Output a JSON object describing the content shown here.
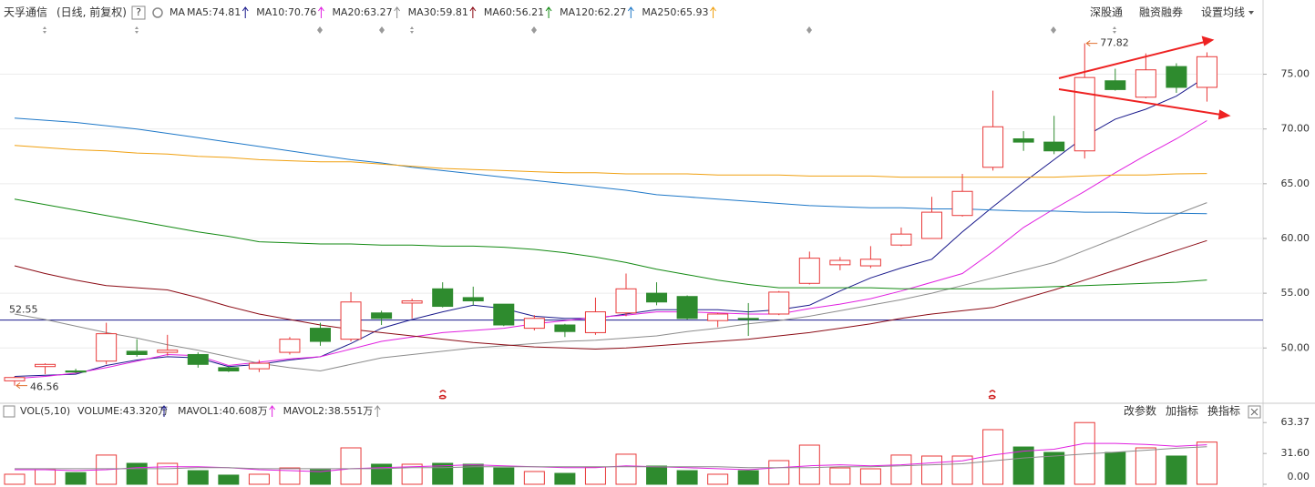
{
  "header": {
    "stock": "天孚通信",
    "period": "(日线, 前复权)",
    "help_icon": "?",
    "ma_label": "MA",
    "right_buttons": [
      "深股通",
      "融资融券",
      "设置均线"
    ]
  },
  "chart_data": [
    {
      "type": "candlestick",
      "open": [
        47.0,
        48.3,
        47.9,
        48.8,
        49.7,
        49.6,
        49.4,
        48.2,
        48.1,
        49.6,
        51.8,
        50.8,
        53.2,
        54.1,
        55.4,
        54.6,
        54.0,
        51.8,
        52.1,
        51.4,
        53.2,
        55.0,
        54.7,
        52.5,
        52.7,
        53.1,
        55.9,
        57.6,
        57.5,
        59.4,
        60.0,
        62.1,
        66.5,
        69.1,
        68.8,
        68.0,
        74.4,
        72.9,
        75.7,
        73.8
      ],
      "high": [
        47.4,
        48.6,
        48.1,
        52.3,
        50.8,
        51.2,
        49.6,
        48.3,
        48.9,
        51.0,
        52.3,
        55.1,
        53.4,
        54.5,
        56.0,
        55.6,
        54.0,
        53.0,
        52.2,
        54.6,
        56.8,
        56.0,
        54.8,
        53.2,
        54.1,
        55.2,
        58.8,
        58.3,
        59.3,
        61.0,
        63.8,
        65.9,
        73.5,
        69.8,
        71.2,
        77.82,
        75.5,
        76.9,
        76.0,
        77.0
      ],
      "low": [
        46.56,
        47.6,
        47.7,
        48.5,
        49.2,
        49.3,
        48.2,
        47.8,
        47.8,
        49.4,
        50.2,
        50.6,
        52.1,
        52.7,
        53.7,
        53.9,
        52.0,
        51.6,
        51.0,
        51.2,
        52.9,
        53.9,
        52.6,
        51.9,
        51.1,
        53.0,
        55.8,
        57.1,
        57.3,
        59.3,
        60.0,
        62.0,
        66.2,
        68.0,
        67.7,
        67.3,
        73.5,
        72.8,
        73.3,
        72.5
      ],
      "close": [
        47.3,
        48.5,
        47.8,
        51.3,
        49.4,
        49.8,
        48.5,
        47.9,
        48.6,
        50.8,
        50.6,
        54.2,
        52.7,
        54.3,
        53.8,
        54.3,
        52.1,
        52.7,
        51.5,
        53.3,
        55.4,
        54.2,
        52.7,
        53.1,
        52.6,
        55.1,
        58.2,
        58.0,
        58.1,
        60.4,
        62.4,
        64.3,
        70.2,
        68.8,
        68.0,
        74.7,
        73.6,
        75.4,
        73.8,
        76.6
      ],
      "up_color": "#e83838",
      "down_color": "#2e8b2e",
      "ylim": [
        45.2,
        79.7
      ],
      "yticks": [
        {
          "value": 50,
          "label": "50.00"
        },
        {
          "value": 55,
          "label": "55.00"
        },
        {
          "value": 60,
          "label": "60.00"
        },
        {
          "value": 65,
          "label": "65.00"
        },
        {
          "value": 70,
          "label": "70.00"
        },
        {
          "value": 75,
          "label": "75.00"
        }
      ],
      "grid": true,
      "ref_line": {
        "value": 52.55,
        "color": "#1a1a8c"
      },
      "series": [
        {
          "name": "MA5:74.81",
          "color": "#1a1a8c",
          "values": [
            47.4,
            47.5,
            47.6,
            48.4,
            48.9,
            49.2,
            49.1,
            48.3,
            48.5,
            48.9,
            49.2,
            50.4,
            51.8,
            52.6,
            53.3,
            53.9,
            53.6,
            52.9,
            52.7,
            52.7,
            53.1,
            53.5,
            53.5,
            53.5,
            53.3,
            53.5,
            53.9,
            55.2,
            56.4,
            57.3,
            58.1,
            60.6,
            62.9,
            65.1,
            67.2,
            69.3,
            70.9,
            71.8,
            73.0,
            74.81
          ]
        },
        {
          "name": "MA10:70.76",
          "color": "#e020e0",
          "values": [
            47.2,
            47.4,
            47.7,
            48.2,
            48.8,
            49.4,
            49.3,
            48.4,
            48.7,
            49.0,
            49.2,
            49.9,
            50.6,
            51.0,
            51.4,
            51.6,
            51.8,
            52.2,
            52.5,
            52.8,
            53.0,
            53.3,
            53.3,
            53.2,
            53.1,
            53.1,
            53.6,
            54.0,
            54.5,
            55.2,
            56.0,
            56.8,
            58.8,
            61.0,
            62.7,
            64.3,
            66.0,
            67.6,
            69.1,
            70.76
          ]
        },
        {
          "name": "MA20:63.27",
          "color": "#8c8c8c",
          "values": [
            53.1,
            52.6,
            52.0,
            51.4,
            50.9,
            50.3,
            49.8,
            49.2,
            48.6,
            48.2,
            47.9,
            48.5,
            49.1,
            49.4,
            49.7,
            50.0,
            50.2,
            50.4,
            50.6,
            50.7,
            50.9,
            51.1,
            51.5,
            51.8,
            52.2,
            52.5,
            52.9,
            53.4,
            53.9,
            54.4,
            55.0,
            55.7,
            56.4,
            57.1,
            57.8,
            58.9,
            60.0,
            61.1,
            62.2,
            63.27
          ]
        },
        {
          "name": "MA30:59.81",
          "color": "#8b0a14",
          "values": [
            57.5,
            56.8,
            56.2,
            55.7,
            55.5,
            55.3,
            54.6,
            53.8,
            53.1,
            52.6,
            52.1,
            51.7,
            51.4,
            51.1,
            50.8,
            50.5,
            50.3,
            50.1,
            50.0,
            49.9,
            50.0,
            50.2,
            50.4,
            50.6,
            50.8,
            51.1,
            51.4,
            51.8,
            52.2,
            52.7,
            53.1,
            53.4,
            53.7,
            54.5,
            55.3,
            56.2,
            57.1,
            58.0,
            58.9,
            59.81
          ]
        },
        {
          "name": "MA60:56.21",
          "color": "#138a13",
          "values": [
            63.6,
            63.1,
            62.6,
            62.1,
            61.6,
            61.1,
            60.6,
            60.2,
            59.7,
            59.6,
            59.5,
            59.5,
            59.4,
            59.4,
            59.3,
            59.3,
            59.2,
            59.0,
            58.7,
            58.3,
            57.8,
            57.2,
            56.7,
            56.2,
            55.8,
            55.5,
            55.5,
            55.5,
            55.5,
            55.4,
            55.4,
            55.4,
            55.4,
            55.5,
            55.6,
            55.7,
            55.8,
            55.9,
            56.0,
            56.21
          ]
        },
        {
          "name": "MA120:62.27",
          "color": "#1e78c8",
          "values": [
            71.0,
            70.8,
            70.6,
            70.3,
            70.0,
            69.6,
            69.2,
            68.8,
            68.4,
            68.0,
            67.6,
            67.2,
            66.9,
            66.5,
            66.2,
            65.9,
            65.6,
            65.3,
            65.0,
            64.7,
            64.4,
            64.0,
            63.8,
            63.6,
            63.4,
            63.2,
            63.0,
            62.9,
            62.8,
            62.8,
            62.7,
            62.7,
            62.6,
            62.5,
            62.5,
            62.4,
            62.4,
            62.3,
            62.3,
            62.27
          ]
        },
        {
          "name": "MA250:65.93",
          "color": "#f0a010",
          "values": [
            68.5,
            68.3,
            68.1,
            68.0,
            67.8,
            67.7,
            67.5,
            67.4,
            67.2,
            67.1,
            67.0,
            67.0,
            66.8,
            66.6,
            66.4,
            66.3,
            66.2,
            66.1,
            66.0,
            66.0,
            65.9,
            65.9,
            65.9,
            65.8,
            65.8,
            65.8,
            65.7,
            65.7,
            65.7,
            65.6,
            65.6,
            65.6,
            65.6,
            65.6,
            65.6,
            65.7,
            65.8,
            65.8,
            65.9,
            65.93
          ]
        }
      ]
    },
    {
      "type": "bar",
      "title": "VOL(5,10)",
      "volume_label": "VOLUME:43.320万",
      "volume_label_color": "#1a1a8c",
      "values": [
        10.3,
        15,
        12,
        30,
        21.5,
        21.5,
        14,
        9.4,
        10.3,
        16.8,
        15,
        37.4,
        20.6,
        20.6,
        21.5,
        20.6,
        16.8,
        13.1,
        11.2,
        17.8,
        30.9,
        18.7,
        14,
        10.3,
        14,
        24.3,
        40.2,
        16.8,
        15.9,
        30,
        29,
        29,
        56.1,
        38.3,
        32.7,
        63.37,
        32.7,
        37.4,
        29,
        43.32
      ],
      "ylim": [
        0,
        72
      ],
      "yticks": [
        {
          "value": 0,
          "label": "0.00"
        },
        {
          "value": 31.6,
          "label": "31.60"
        },
        63.37
      ],
      "buttons": [
        "改参数",
        "加指标",
        "换指标"
      ],
      "series": [
        {
          "name": "MAVOL1:40.608万",
          "color": "#e020e0",
          "values": [
            15,
            15,
            14,
            15,
            17,
            18,
            18,
            17,
            15,
            14,
            13,
            16,
            17,
            18,
            19,
            20,
            19,
            18,
            17,
            17,
            19,
            18,
            17,
            16,
            15,
            17,
            19,
            20,
            19,
            20,
            22,
            24,
            30,
            34,
            36,
            42,
            42,
            41,
            39,
            40.608
          ]
        },
        {
          "name": "MAVOL2:38.551万",
          "color": "#8c8c8c",
          "values": [
            16,
            16,
            16,
            16,
            16,
            16,
            17,
            17,
            16,
            16,
            16,
            16,
            16,
            17,
            17,
            18,
            18,
            18,
            18,
            18,
            18,
            18,
            18,
            18,
            17,
            17,
            17,
            18,
            18,
            19,
            20,
            21,
            24,
            27,
            29,
            31,
            33,
            35,
            37,
            38.551
          ]
        }
      ]
    }
  ]
}
